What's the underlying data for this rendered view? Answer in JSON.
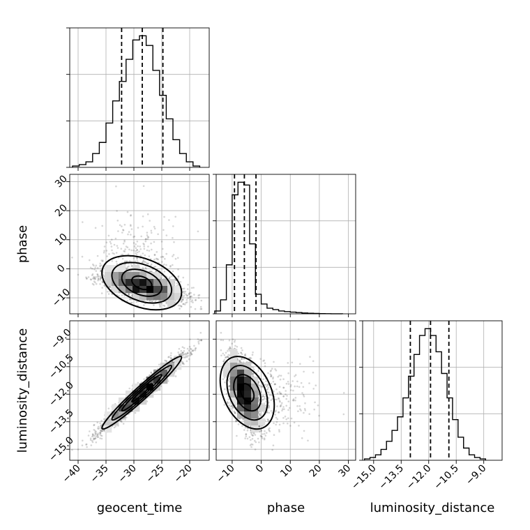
{
  "chart_data": {
    "type": "corner",
    "parameters": [
      "geocent_time",
      "phase",
      "luminosity_distance"
    ],
    "axis_labels": {
      "x": [
        "geocent_time",
        "phase",
        "luminosity_distance"
      ],
      "y": [
        "phase",
        "luminosity_distance"
      ]
    },
    "ranges": {
      "geocent_time": [
        -41.5,
        -16.5
      ],
      "phase": [
        -15.5,
        32.5
      ],
      "luminosity_distance": [
        -15.6,
        -8.0
      ]
    },
    "ticks": {
      "geocent_time": [
        -40,
        -35,
        -30,
        -25,
        -20
      ],
      "phase": [
        -10,
        0,
        10,
        20,
        30
      ],
      "luminosity_distance": [
        -15.0,
        -13.5,
        -12.0,
        -10.5,
        -9.0
      ]
    },
    "tick_labels": {
      "geocent_time": [
        "−40",
        "−35",
        "−30",
        "−25",
        "−20"
      ],
      "phase": [
        "−10",
        "0",
        "10",
        "20",
        "30"
      ],
      "luminosity_distance": [
        "−15.0",
        "−13.5",
        "−12.0",
        "−10.5",
        "−9.0"
      ]
    },
    "quantiles": {
      "geocent_time": [
        -32.2,
        -28.5,
        -24.8
      ],
      "phase": [
        -9.2,
        -5.8,
        -1.8
      ],
      "luminosity_distance": [
        -13.0,
        -11.9,
        -10.9
      ]
    },
    "histograms": {
      "geocent_time": {
        "edges": [
          -41,
          -39.8,
          -38.6,
          -37.4,
          -36.2,
          -35,
          -33.8,
          -32.6,
          -31.4,
          -30.2,
          -29,
          -27.8,
          -26.6,
          -25.4,
          -24.2,
          -23,
          -21.8,
          -20.6,
          -19.4,
          -18.2
        ],
        "counts": [
          1,
          2,
          4,
          10,
          18,
          32,
          48,
          62,
          78,
          92,
          95,
          88,
          70,
          52,
          35,
          20,
          10,
          4,
          1
        ]
      },
      "phase": {
        "edges": [
          -16,
          -14,
          -12,
          -10,
          -8,
          -6,
          -4,
          -2,
          0,
          2,
          4,
          6,
          8,
          10,
          12,
          14,
          16,
          18,
          20,
          22,
          24,
          26,
          28
        ],
        "counts": [
          2,
          10,
          35,
          85,
          94,
          92,
          50,
          14,
          7,
          4,
          3,
          2,
          1.6,
          1.2,
          0.9,
          0.6,
          0.4,
          0.25,
          0.15,
          0.1,
          0.05,
          0.02
        ]
      },
      "luminosity_distance": {
        "edges": [
          -15.5,
          -15.2,
          -14.9,
          -14.6,
          -14.3,
          -14.0,
          -13.7,
          -13.4,
          -13.1,
          -12.8,
          -12.5,
          -12.2,
          -11.9,
          -11.6,
          -11.3,
          -11.0,
          -10.7,
          -10.4,
          -10.1,
          -9.8,
          -9.5,
          -9.2,
          -8.9
        ],
        "counts": [
          1,
          2,
          4,
          8,
          14,
          22,
          32,
          46,
          62,
          78,
          92,
          97,
          92,
          80,
          64,
          46,
          30,
          17,
          9,
          4,
          2,
          1
        ]
      }
    },
    "joint_summary": {
      "phase_vs_geocent_time": {
        "center": [
          -29,
          -7
        ],
        "corr": -0.45
      },
      "luminosity_distance_vs_geocent_time": {
        "center": [
          -29,
          -11.9
        ],
        "corr": 0.97
      },
      "luminosity_distance_vs_phase": {
        "center": [
          -6,
          -11.8
        ],
        "corr": -0.45
      }
    },
    "grid": true
  }
}
